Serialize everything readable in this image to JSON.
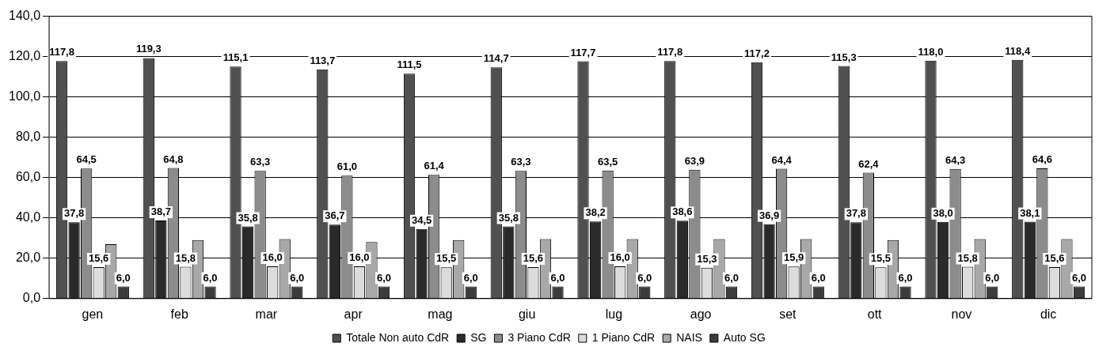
{
  "chart_data": {
    "type": "bar",
    "categories": [
      "gen",
      "feb",
      "mar",
      "apr",
      "mag",
      "giu",
      "lug",
      "ago",
      "set",
      "ott",
      "nov",
      "dic"
    ],
    "series": [
      {
        "name": "Totale Non auto CdR",
        "color": "#505050",
        "values": [
          117.8,
          119.3,
          115.1,
          113.7,
          111.5,
          114.7,
          117.7,
          117.8,
          117.2,
          115.3,
          118.0,
          118.4
        ],
        "value_labels": [
          "117,8",
          "119,3",
          "115,1",
          "113,7",
          "111,5",
          "114,7",
          "117,7",
          "117,8",
          "117,2",
          "115,3",
          "118,0",
          "118,4"
        ]
      },
      {
        "name": "SG",
        "color": "#2a2a2a",
        "values": [
          37.8,
          38.7,
          35.8,
          36.7,
          34.5,
          35.8,
          38.2,
          38.6,
          36.9,
          37.8,
          38.0,
          38.1
        ],
        "value_labels": [
          "37,8",
          "38,7",
          "35,8",
          "36,7",
          "34,5",
          "35,8",
          "38,2",
          "38,6",
          "36,9",
          "37,8",
          "38,0",
          "38,1"
        ]
      },
      {
        "name": "3 Piano CdR",
        "color": "#8c8c8c",
        "values": [
          64.5,
          64.8,
          63.3,
          61.0,
          61.4,
          63.3,
          63.5,
          63.9,
          64.4,
          62.4,
          64.3,
          64.6
        ],
        "value_labels": [
          "64,5",
          "64,8",
          "63,3",
          "61,0",
          "61,4",
          "63,3",
          "63,5",
          "63,9",
          "64,4",
          "62,4",
          "64,3",
          "64,6"
        ]
      },
      {
        "name": "1 Piano CdR",
        "color": "#dcdcdc",
        "values": [
          15.6,
          15.8,
          16.0,
          16.0,
          15.5,
          15.6,
          16.0,
          15.3,
          15.9,
          15.5,
          15.8,
          15.6
        ],
        "value_labels": [
          "15,6",
          "15,8",
          "16,0",
          "16,0",
          "15,5",
          "15,6",
          "16,0",
          "15,3",
          "15,9",
          "15,5",
          "15,8",
          "15,6"
        ]
      },
      {
        "name": "NAIS",
        "color": "#a8a8a8",
        "values": [
          27,
          29,
          29.5,
          28,
          29,
          29.5,
          29.5,
          29.5,
          29.5,
          29,
          29.5,
          29.5
        ]
      },
      {
        "name": "Auto SG",
        "color": "#3c3c3c",
        "values": [
          6.0,
          6.0,
          6.0,
          6.0,
          6.0,
          6.0,
          6.0,
          6.0,
          6.0,
          6.0,
          6.0,
          6.0
        ],
        "value_labels": [
          "6,0",
          "6,0",
          "6,0",
          "6,0",
          "6,0",
          "6,0",
          "6,0",
          "6,0",
          "6,0",
          "6,0",
          "6,0",
          "6,0"
        ]
      }
    ],
    "ylim": [
      0,
      140
    ],
    "yticks": [
      {
        "value": 0,
        "label": "0,0"
      },
      {
        "value": 20,
        "label": "20,0"
      },
      {
        "value": 40,
        "label": "40,0"
      },
      {
        "value": 60,
        "label": "60,0"
      },
      {
        "value": 80,
        "label": "80,0"
      },
      {
        "value": 100,
        "label": "100,0"
      },
      {
        "value": 120,
        "label": "120,0"
      },
      {
        "value": 140,
        "label": "140,0"
      }
    ],
    "grid": "y",
    "legend": "bottom"
  }
}
